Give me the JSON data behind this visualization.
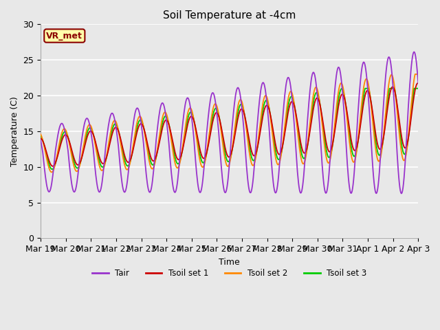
{
  "title": "Soil Temperature at -4cm",
  "xlabel": "Time",
  "ylabel": "Temperature (C)",
  "ylim": [
    0,
    30
  ],
  "background_color": "#e8e8e8",
  "plot_bg_color": "#e8e8e8",
  "grid_color": "white",
  "annotation_text": "VR_met",
  "annotation_bg": "#ffffaa",
  "annotation_border": "#8b0000",
  "colors": {
    "Tair": "#9933cc",
    "Tsoil1": "#cc0000",
    "Tsoil2": "#ff8800",
    "Tsoil3": "#00cc00"
  },
  "legend_labels": [
    "Tair",
    "Tsoil set 1",
    "Tsoil set 2",
    "Tsoil set 3"
  ],
  "tick_labels": [
    "Mar 19",
    "Mar 20",
    "Mar 21",
    "Mar 22",
    "Mar 23",
    "Mar 24",
    "Mar 25",
    "Mar 26",
    "Mar 27",
    "Mar 28",
    "Mar 29",
    "Mar 30",
    "Mar 31",
    "Apr 1",
    "Apr 2",
    "Apr 3"
  ]
}
